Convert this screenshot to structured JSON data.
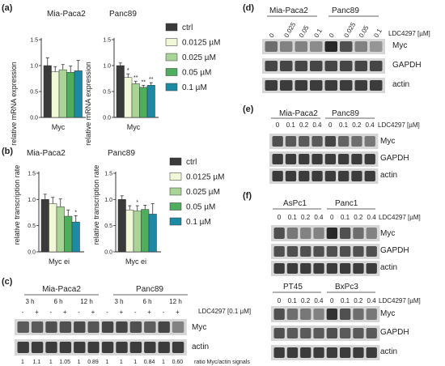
{
  "panels": {
    "a": {
      "label": "(a)",
      "ylabel": "relative mRNA expression",
      "xlabel": "Myc",
      "left_title": "Mia-Paca2",
      "right_title": "Panc89"
    },
    "b": {
      "label": "(b)",
      "ylabel": "relative transcription rate",
      "xlabel": "Myc ei",
      "left_title": "Mia-Paca2",
      "right_title": "Panc89"
    },
    "c": {
      "label": "(c)",
      "lines": [
        "Mia-Paca2",
        "Panc89"
      ],
      "times": [
        "3 h",
        "6 h",
        "12 h"
      ],
      "treatment": "LDC4297 [0.1 µM]",
      "signs": [
        "-",
        "+",
        "-",
        "+",
        "-",
        "+",
        "-",
        "+",
        "-",
        "+",
        "-",
        "+"
      ],
      "bands": [
        "Myc",
        "actin"
      ],
      "ratios": [
        "1",
        "1.1",
        "1",
        "1.05",
        "1",
        "0.89",
        "1",
        "1",
        "1",
        "0.84",
        "1",
        "0.60"
      ],
      "ratio_label": "ratio Myc/actin signals"
    },
    "d": {
      "label": "(d)",
      "lines": [
        "Mia-Paca2",
        "Panc89"
      ],
      "doses": [
        "0",
        "0.025",
        "0.05",
        "0.1",
        "0",
        "0.025",
        "0.05",
        "0.1"
      ],
      "treatment": "LDC4297 [µM]",
      "bands": [
        "Myc",
        "GAPDH",
        "actin"
      ]
    },
    "e": {
      "label": "(e)",
      "lines": [
        "Mia-Paca2",
        "Panc89"
      ],
      "doses": [
        "0",
        "0.1",
        "0.2",
        "0.4",
        "0",
        "0.1",
        "0.2",
        "0.4"
      ],
      "treatment": "LDC4297 [µM]",
      "bands": [
        "Myc",
        "GAPDH",
        "actin"
      ]
    },
    "f": {
      "label": "(f)",
      "top": {
        "lines": [
          "AsPc1",
          "Panc1"
        ],
        "doses": [
          "0",
          "0.1",
          "0.2",
          "0.4",
          "0",
          "0.1",
          "0.2",
          "0.4"
        ],
        "treatment": "LDC4297 [µM]",
        "bands": [
          "Myc",
          "GAPDH",
          "actin"
        ]
      },
      "bottom": {
        "lines": [
          "PT45",
          "BxPc3"
        ],
        "doses": [
          "0",
          "0.1",
          "0.2",
          "0.4",
          "0",
          "0.1",
          "0.2",
          "0.4"
        ],
        "treatment": "LDC4297 [µM]",
        "bands": [
          "Myc",
          "GAPDH",
          "actin"
        ]
      }
    }
  },
  "legend": [
    "ctrl",
    "0.0125 µM",
    "0.025 µM",
    "0.05 µM",
    "0.1 µM"
  ],
  "colors": [
    "#3a3a3a",
    "#f1f8d8",
    "#a8d596",
    "#4fae5d",
    "#1d8aa5"
  ],
  "chart_data": [
    {
      "type": "bar",
      "panel": "a-left",
      "title": "Mia-Paca2",
      "xlabel": "Myc",
      "ylabel": "relative mRNA expression",
      "ylim": [
        0,
        1.5
      ],
      "yticks": [
        "0.0",
        "0.5",
        "1.0",
        "1.5"
      ],
      "values": [
        1.0,
        0.88,
        0.92,
        0.87,
        0.9
      ],
      "errors": [
        0.15,
        0.1,
        0.1,
        0.12,
        0.2
      ],
      "marks": [
        "",
        "",
        "",
        "",
        ""
      ]
    },
    {
      "type": "bar",
      "panel": "a-right",
      "title": "Panc89",
      "xlabel": "Myc",
      "ylabel": "relative mRNA expression",
      "ylim": [
        0,
        1.5
      ],
      "yticks": [
        "0.0",
        "0.5",
        "1.0",
        "1.5"
      ],
      "values": [
        1.0,
        0.77,
        0.65,
        0.58,
        0.62
      ],
      "errors": [
        0.05,
        0.07,
        0.05,
        0.04,
        0.05
      ],
      "marks": [
        "",
        "*",
        "**",
        "**",
        "**"
      ]
    },
    {
      "type": "bar",
      "panel": "b-left",
      "title": "Mia-Paca2",
      "xlabel": "Myc ei",
      "ylabel": "relative transcription rate",
      "ylim": [
        0,
        1.5
      ],
      "yticks": [
        "0.0",
        "0.5",
        "1.0",
        "1.5"
      ],
      "values": [
        1.0,
        0.92,
        0.86,
        0.68,
        0.57
      ],
      "errors": [
        0.1,
        0.12,
        0.15,
        0.12,
        0.12
      ],
      "marks": [
        "",
        "",
        "",
        "",
        "*"
      ]
    },
    {
      "type": "bar",
      "panel": "b-right",
      "title": "Panc89",
      "xlabel": "Myc ei",
      "ylabel": "relative transcription rate",
      "ylim": [
        0,
        1.5
      ],
      "yticks": [
        "0.0",
        "0.5",
        "1.0",
        "1.5"
      ],
      "values": [
        1.0,
        0.8,
        0.78,
        0.81,
        0.72
      ],
      "errors": [
        0.07,
        0.08,
        0.1,
        0.08,
        0.2
      ],
      "marks": [
        "",
        "",
        "*",
        "",
        ""
      ]
    }
  ]
}
